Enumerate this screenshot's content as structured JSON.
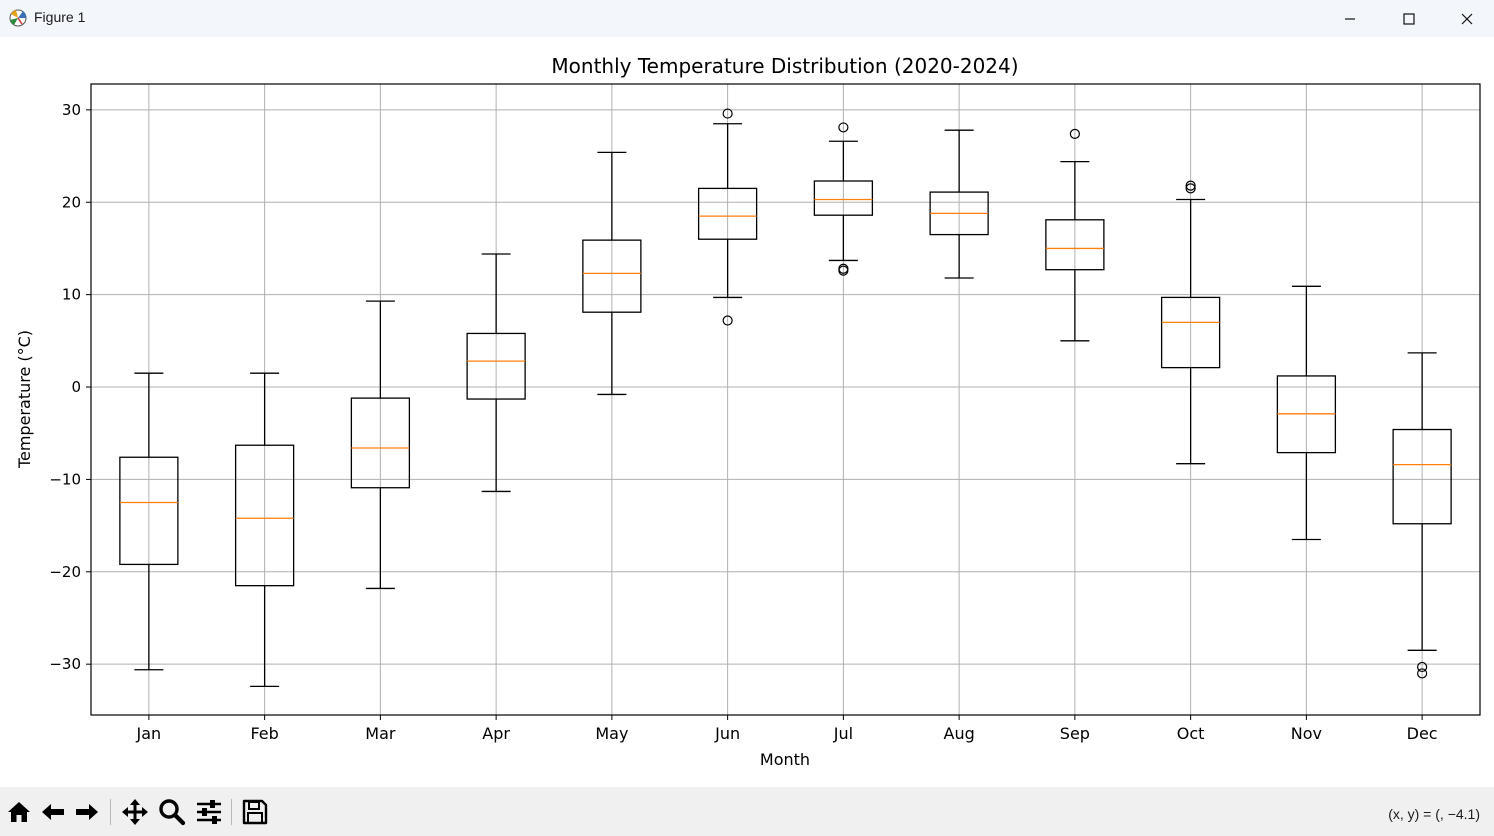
{
  "window": {
    "title": "Figure 1"
  },
  "toolbar": {
    "buttons": [
      "home-icon",
      "back-icon",
      "forward-icon",
      "pan-icon",
      "zoom-icon",
      "configure-subplots-icon",
      "save-icon"
    ],
    "coords": "(x, y) = (, −4.1)"
  },
  "colors": {
    "median": "#ff7f0e",
    "box": "#000000",
    "grid": "#b0b0b0"
  },
  "chart_data": {
    "type": "boxplot",
    "title": "Monthly Temperature Distribution (2020-2024)",
    "xlabel": "Month",
    "ylabel": "Temperature (°C)",
    "ylim": [
      -35.5,
      32.8
    ],
    "yticks": [
      30,
      20,
      10,
      0,
      -10,
      -20,
      -30
    ],
    "yticklabels": [
      "30",
      "20",
      "10",
      "0",
      "−10",
      "−20",
      "−30"
    ],
    "grid": true,
    "categories": [
      "Jan",
      "Feb",
      "Mar",
      "Apr",
      "May",
      "Jun",
      "Jul",
      "Aug",
      "Sep",
      "Oct",
      "Nov",
      "Dec"
    ],
    "boxes": [
      {
        "whislo": -30.6,
        "q1": -19.2,
        "med": -12.5,
        "q3": -7.6,
        "whishi": 1.5,
        "fliers": []
      },
      {
        "whislo": -32.4,
        "q1": -21.5,
        "med": -14.2,
        "q3": -6.3,
        "whishi": 1.5,
        "fliers": []
      },
      {
        "whislo": -21.8,
        "q1": -10.9,
        "med": -6.6,
        "q3": -1.2,
        "whishi": 9.3,
        "fliers": []
      },
      {
        "whislo": -11.3,
        "q1": -1.3,
        "med": 2.8,
        "q3": 5.8,
        "whishi": 14.4,
        "fliers": []
      },
      {
        "whislo": -0.8,
        "q1": 8.1,
        "med": 12.3,
        "q3": 15.9,
        "whishi": 25.4,
        "fliers": []
      },
      {
        "whislo": 9.7,
        "q1": 16.0,
        "med": 18.5,
        "q3": 21.5,
        "whishi": 28.5,
        "fliers": [
          29.6,
          7.2
        ]
      },
      {
        "whislo": 13.7,
        "q1": 18.6,
        "med": 20.3,
        "q3": 22.3,
        "whishi": 26.6,
        "fliers": [
          28.1,
          12.8,
          12.6
        ]
      },
      {
        "whislo": 11.8,
        "q1": 16.5,
        "med": 18.8,
        "q3": 21.1,
        "whishi": 27.8,
        "fliers": []
      },
      {
        "whislo": 5.0,
        "q1": 12.7,
        "med": 15.0,
        "q3": 18.1,
        "whishi": 24.4,
        "fliers": [
          27.4
        ]
      },
      {
        "whislo": -8.3,
        "q1": 2.1,
        "med": 7.0,
        "q3": 9.7,
        "whishi": 20.3,
        "fliers": [
          21.8,
          21.5
        ]
      },
      {
        "whislo": -16.5,
        "q1": -7.1,
        "med": -2.9,
        "q3": 1.2,
        "whishi": 10.9,
        "fliers": []
      },
      {
        "whislo": -28.5,
        "q1": -14.8,
        "med": -8.4,
        "q3": -4.6,
        "whishi": 3.7,
        "fliers": [
          -30.3,
          -31.0
        ]
      }
    ]
  }
}
